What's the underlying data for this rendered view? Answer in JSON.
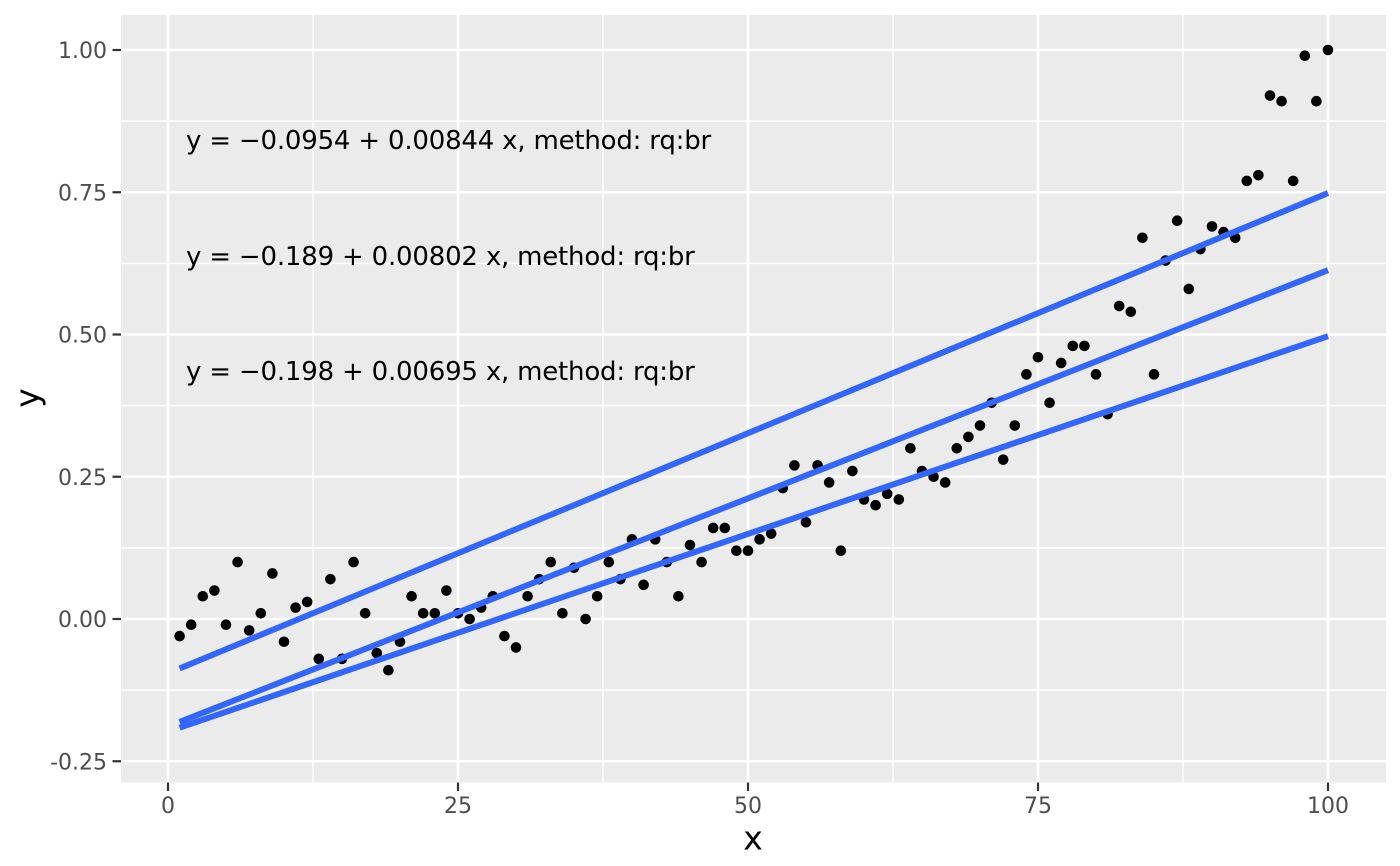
{
  "figure": {
    "background": "#FFFFFF",
    "panel_background": "#EBEBEB",
    "grid_color": "#FFFFFF",
    "tick_color": "#333333",
    "tick_label_color": "#4D4D4D",
    "axis_title_color": "#000000",
    "point_color": "#000000",
    "line_color": "#3366FF"
  },
  "chart_data": {
    "type": "scatter",
    "title": "",
    "xlabel": "x",
    "ylabel": "y",
    "legend": "none",
    "grid": "major-and-minor-white-on-grey-panel",
    "xlim": [
      -4,
      105
    ],
    "ylim": [
      -0.287,
      1.062
    ],
    "x_ticks": [
      0,
      25,
      50,
      75,
      100
    ],
    "x_tick_labels": [
      "0",
      "25",
      "50",
      "75",
      "100"
    ],
    "y_ticks": [
      1.0,
      0.75,
      0.5,
      0.25,
      0.0,
      -0.25
    ],
    "y_tick_labels": [
      "1.00",
      "0.75",
      "0.50",
      "0.25",
      "0.00",
      "-0.25"
    ],
    "x_minor_ticks": [
      12.5,
      37.5,
      62.5,
      87.5
    ],
    "y_minor_ticks": [
      0.875,
      0.625,
      0.375,
      0.125,
      -0.125
    ],
    "points": {
      "x": [
        1,
        2,
        3,
        4,
        5,
        6,
        7,
        8,
        9,
        10,
        11,
        12,
        13,
        14,
        15,
        16,
        17,
        18,
        19,
        20,
        21,
        22,
        23,
        24,
        25,
        26,
        27,
        28,
        29,
        30,
        31,
        32,
        33,
        34,
        35,
        36,
        37,
        38,
        39,
        40,
        41,
        42,
        43,
        44,
        45,
        46,
        47,
        48,
        49,
        50,
        51,
        52,
        53,
        54,
        55,
        56,
        57,
        58,
        59,
        60,
        61,
        62,
        63,
        64,
        65,
        66,
        67,
        68,
        69,
        70,
        71,
        72,
        73,
        74,
        75,
        76,
        77,
        78,
        79,
        80,
        81,
        82,
        83,
        84,
        85,
        86,
        87,
        88,
        89,
        90,
        91,
        92,
        93,
        94,
        95,
        96,
        97,
        98,
        99,
        100
      ],
      "y": [
        -0.03,
        -0.01,
        0.04,
        0.05,
        -0.01,
        0.1,
        -0.02,
        0.01,
        0.08,
        -0.04,
        0.02,
        0.03,
        -0.07,
        0.07,
        -0.07,
        0.1,
        0.01,
        -0.06,
        -0.09,
        -0.04,
        0.04,
        0.01,
        0.01,
        0.05,
        0.01,
        0.0,
        0.02,
        0.04,
        -0.03,
        -0.05,
        0.04,
        0.07,
        0.1,
        0.01,
        0.09,
        0.0,
        0.04,
        0.1,
        0.07,
        0.14,
        0.06,
        0.14,
        0.1,
        0.04,
        0.13,
        0.1,
        0.16,
        0.16,
        0.12,
        0.12,
        0.14,
        0.15,
        0.23,
        0.27,
        0.17,
        0.27,
        0.24,
        0.12,
        0.26,
        0.21,
        0.2,
        0.22,
        0.21,
        0.3,
        0.26,
        0.25,
        0.24,
        0.3,
        0.32,
        0.34,
        0.38,
        0.28,
        0.34,
        0.43,
        0.46,
        0.38,
        0.45,
        0.48,
        0.48,
        0.43,
        0.36,
        0.55,
        0.54,
        0.67,
        0.43,
        0.63,
        0.7,
        0.58,
        0.65,
        0.69,
        0.68,
        0.67,
        0.77,
        0.78,
        0.92,
        0.91,
        0.77,
        0.99,
        0.91,
        1.0
      ]
    },
    "regression_lines": [
      {
        "label": "y = −0.0954 + 0.00844 x, method: rq:br",
        "intercept": -0.0954,
        "slope": 0.00844,
        "x_start": 1,
        "x_end": 100
      },
      {
        "label": "y = −0.189 + 0.00802 x, method: rq:br",
        "intercept": -0.189,
        "slope": 0.00802,
        "x_start": 1,
        "x_end": 100
      },
      {
        "label": "y = −0.198 + 0.00695 x, method: rq:br",
        "intercept": -0.198,
        "slope": 0.00695,
        "x_start": 1,
        "x_end": 100
      }
    ]
  }
}
